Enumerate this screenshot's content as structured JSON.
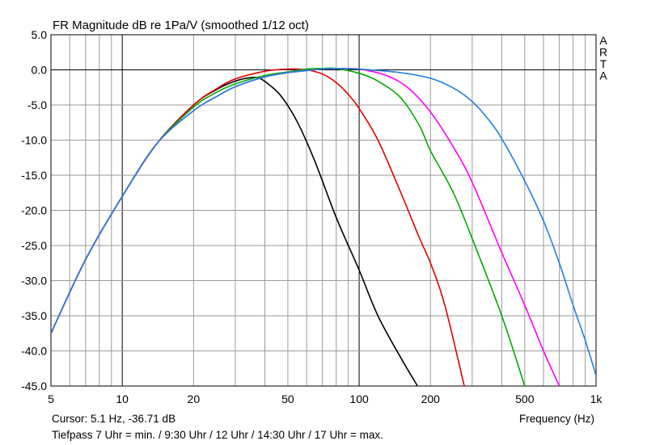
{
  "chart_data": {
    "type": "line",
    "title": "FR Magnitude dB re 1Pa/V (smoothed 1/12 oct)",
    "xlabel": "Frequency (Hz)",
    "ylabel": "",
    "x_scale": "log",
    "xlim": [
      5,
      1000
    ],
    "ylim": [
      -45,
      5
    ],
    "grid": true,
    "x_tick_labels": [
      {
        "value": 5,
        "label": "5"
      },
      {
        "value": 10,
        "label": "10"
      },
      {
        "value": 20,
        "label": "20"
      },
      {
        "value": 50,
        "label": "50"
      },
      {
        "value": 100,
        "label": "100"
      },
      {
        "value": 200,
        "label": "200"
      },
      {
        "value": 500,
        "label": "500"
      },
      {
        "value": 1000,
        "label": "1k"
      }
    ],
    "y_ticks": [
      5,
      0,
      -5,
      -10,
      -15,
      -20,
      -25,
      -30,
      -35,
      -40,
      -45
    ],
    "y_tick_labels": [
      "5.0",
      "0.0",
      "-5.0",
      "-10.0",
      "-15.0",
      "-20.0",
      "-25.0",
      "-30.0",
      "-35.0",
      "-40.0",
      "-45.0"
    ],
    "brand": "ARTA",
    "cursor_text": "Cursor: 5.1 Hz, -36.71 dB",
    "footer_note": "Tiefpass 7 Uhr = min. / 9:30 Uhr / 12 Uhr / 14:30 Uhr / 17 Uhr = max.",
    "series": [
      {
        "color": "#000000",
        "x": [
          5,
          7,
          10,
          14,
          20,
          25,
          30,
          35,
          38,
          42,
          47,
          55,
          65,
          80,
          100,
          120,
          150,
          180
        ],
        "y": [
          -37.5,
          -27,
          -18,
          -10.5,
          -5,
          -2.8,
          -1.6,
          -1.1,
          -1.2,
          -2.2,
          -3.8,
          -7.5,
          -13,
          -21,
          -28.5,
          -35,
          -41,
          -45.5
        ]
      },
      {
        "color": "#e00000",
        "x": [
          5,
          7,
          10,
          14,
          20,
          25,
          30,
          40,
          50,
          60,
          70,
          80,
          90,
          100,
          120,
          150,
          180,
          200,
          230,
          280
        ],
        "y": [
          -37.5,
          -27,
          -18,
          -10.5,
          -5,
          -2.7,
          -1.3,
          -0.2,
          0.1,
          0,
          -0.6,
          -1.8,
          -3.5,
          -5.5,
          -10,
          -17.5,
          -24,
          -27.5,
          -33.5,
          -45.5
        ]
      },
      {
        "color": "#00aa00",
        "x": [
          5,
          7,
          10,
          14,
          20,
          25,
          30,
          40,
          50,
          60,
          70,
          80,
          100,
          120,
          150,
          180,
          200,
          250,
          300,
          400,
          500
        ],
        "y": [
          -37.5,
          -27,
          -18,
          -10.5,
          -5.3,
          -3.2,
          -2,
          -0.8,
          -0.3,
          0.1,
          0.2,
          0.2,
          -0.5,
          -1.6,
          -4,
          -8,
          -11.5,
          -17.5,
          -24,
          -35,
          -45
        ]
      },
      {
        "color": "#ff00ff",
        "x": [
          5,
          7,
          10,
          14,
          20,
          25,
          30,
          40,
          50,
          60,
          70,
          80,
          100,
          130,
          160,
          200,
          250,
          300,
          400,
          500,
          600,
          700
        ],
        "y": [
          -37.5,
          -27,
          -18,
          -10.5,
          -5.8,
          -3.8,
          -2.4,
          -1,
          -0.4,
          -0.1,
          0.1,
          0.2,
          0.1,
          -0.8,
          -2.5,
          -6,
          -11,
          -16,
          -26,
          -33.5,
          -40,
          -45
        ]
      },
      {
        "color": "#2080e0",
        "x": [
          5,
          7,
          10,
          14,
          20,
          25,
          30,
          40,
          50,
          60,
          70,
          80,
          100,
          150,
          200,
          250,
          300,
          350,
          400,
          500,
          600,
          700,
          800,
          900,
          1000
        ],
        "y": [
          -37.5,
          -27,
          -18,
          -10.5,
          -5.8,
          -3.8,
          -2.4,
          -1,
          -0.4,
          -0.1,
          0.1,
          0.2,
          0.1,
          -0.4,
          -1.2,
          -2.6,
          -4.5,
          -7,
          -9.8,
          -15.8,
          -21.5,
          -27.5,
          -33.5,
          -38.5,
          -43.5
        ]
      }
    ]
  }
}
